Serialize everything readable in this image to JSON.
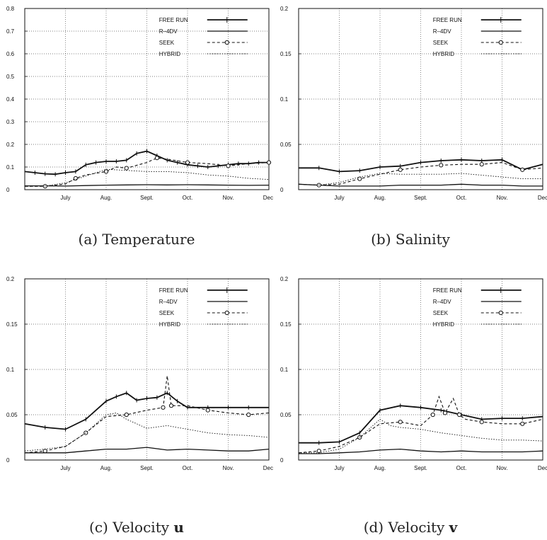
{
  "figure": {
    "captions": [
      {
        "label": "(a)",
        "text": "Temperature",
        "symbol": ""
      },
      {
        "label": "(b)",
        "text": "Salinity",
        "symbol": ""
      },
      {
        "label": "(c)",
        "text": "Velocity",
        "symbol": "u"
      },
      {
        "label": "(d)",
        "text": "Velocity",
        "symbol": "v"
      }
    ]
  },
  "legend_labels": [
    "FREE RUN",
    "R–4DV",
    "SEEK",
    "HYBRID"
  ],
  "colors": {
    "lines": "#111111",
    "grid": "#555555",
    "axis": "#111111",
    "background": "#ffffff"
  },
  "chart_data": [
    {
      "type": "line",
      "title": "Temperature",
      "xlabel": "",
      "ylabel": "",
      "x_ticks": [
        "July",
        "Aug.",
        "Sept.",
        "Oct.",
        "Nov.",
        "Dec."
      ],
      "xlim": [
        0,
        6
      ],
      "ylim": [
        0,
        0.8
      ],
      "y_ticks": [
        "0",
        "0.1",
        "0.2",
        "0.3",
        "0.4",
        "0.5",
        "0.6",
        "0.7",
        "0.8"
      ],
      "grid": "vertical dotted at months, horizontal dotted at ticks",
      "legend_position": "top-right",
      "series": [
        {
          "name": "FREE RUN",
          "style": "thick line with cross markers",
          "x": [
            0,
            0.25,
            0.5,
            0.75,
            1,
            1.25,
            1.5,
            1.75,
            2,
            2.25,
            2.5,
            2.75,
            3,
            3.25,
            3.5,
            3.75,
            4,
            4.25,
            4.5,
            4.75,
            5,
            5.25,
            5.5,
            5.75,
            6
          ],
          "y": [
            0.08,
            0.075,
            0.07,
            0.068,
            0.075,
            0.08,
            0.11,
            0.12,
            0.125,
            0.125,
            0.13,
            0.16,
            0.17,
            0.15,
            0.13,
            0.12,
            0.11,
            0.105,
            0.1,
            0.105,
            0.11,
            0.115,
            0.115,
            0.12,
            0.12
          ]
        },
        {
          "name": "R–4DV",
          "style": "solid line",
          "x": [
            0,
            0.5,
            1,
            1.5,
            2,
            2.5,
            3,
            3.5,
            4,
            4.5,
            5,
            5.5,
            6
          ],
          "y": [
            0.017,
            0.017,
            0.016,
            0.018,
            0.02,
            0.021,
            0.022,
            0.021,
            0.022,
            0.021,
            0.02,
            0.019,
            0.02
          ]
        },
        {
          "name": "SEEK",
          "style": "dashed line with circle markers",
          "x": [
            0,
            0.5,
            1,
            1.25,
            1.5,
            2,
            2.25,
            2.5,
            3,
            3.25,
            3.5,
            4,
            4.5,
            5,
            5.5,
            6
          ],
          "y": [
            0.015,
            0.015,
            0.025,
            0.05,
            0.065,
            0.08,
            0.1,
            0.095,
            0.12,
            0.14,
            0.135,
            0.12,
            0.115,
            0.105,
            0.115,
            0.12
          ]
        },
        {
          "name": "HYBRID",
          "style": "fine dotted line",
          "x": [
            0,
            0.5,
            1,
            1.5,
            2,
            2.5,
            3,
            3.5,
            4,
            4.5,
            5,
            5.5,
            6
          ],
          "y": [
            0.015,
            0.016,
            0.03,
            0.06,
            0.09,
            0.085,
            0.08,
            0.08,
            0.075,
            0.065,
            0.06,
            0.05,
            0.045
          ]
        }
      ]
    },
    {
      "type": "line",
      "title": "Salinity",
      "xlabel": "",
      "ylabel": "",
      "x_ticks": [
        "July",
        "Aug.",
        "Sept.",
        "Oct.",
        "Nov.",
        "Dec"
      ],
      "xlim": [
        0,
        6
      ],
      "ylim": [
        0,
        0.2
      ],
      "y_ticks": [
        "0",
        "0.05",
        "0.1",
        "0.15",
        "0.2"
      ],
      "grid": "vertical dotted at months, horizontal dotted at ticks",
      "legend_position": "top-right",
      "series": [
        {
          "name": "FREE RUN",
          "style": "thick line with cross markers",
          "x": [
            0,
            0.5,
            1,
            1.5,
            2,
            2.5,
            3,
            3.5,
            4,
            4.5,
            5,
            5.5,
            6
          ],
          "y": [
            0.024,
            0.024,
            0.02,
            0.021,
            0.025,
            0.026,
            0.03,
            0.032,
            0.033,
            0.032,
            0.033,
            0.022,
            0.028
          ]
        },
        {
          "name": "R–4DV",
          "style": "solid line",
          "x": [
            0,
            0.5,
            1,
            1.5,
            2,
            2.5,
            3,
            3.5,
            4,
            4.5,
            5,
            5.5,
            6
          ],
          "y": [
            0.006,
            0.005,
            0.004,
            0.004,
            0.004,
            0.005,
            0.005,
            0.005,
            0.006,
            0.005,
            0.005,
            0.004,
            0.004
          ]
        },
        {
          "name": "SEEK",
          "style": "dashed line with circle markers",
          "x": [
            0,
            0.5,
            1,
            1.5,
            2,
            2.5,
            3,
            3.5,
            4,
            4.5,
            5,
            5.5,
            6
          ],
          "y": [
            0.006,
            0.005,
            0.006,
            0.012,
            0.017,
            0.022,
            0.025,
            0.027,
            0.028,
            0.028,
            0.03,
            0.022,
            0.024
          ]
        },
        {
          "name": "HYBRID",
          "style": "fine dotted line",
          "x": [
            0,
            0.5,
            1,
            1.5,
            2,
            2.5,
            3,
            3.5,
            4,
            4.5,
            5,
            5.5,
            6
          ],
          "y": [
            0.006,
            0.005,
            0.008,
            0.014,
            0.018,
            0.017,
            0.017,
            0.017,
            0.018,
            0.016,
            0.014,
            0.012,
            0.012
          ]
        }
      ]
    },
    {
      "type": "line",
      "title": "Velocity u",
      "xlabel": "",
      "ylabel": "",
      "x_ticks": [
        "July",
        "Aug.",
        "Sept.",
        "Oct.",
        "Nov.",
        "Dec."
      ],
      "xlim": [
        0,
        6
      ],
      "ylim": [
        0,
        0.2
      ],
      "y_ticks": [
        "0",
        "0.05",
        "0.1",
        "0.15",
        "0.2"
      ],
      "grid": "vertical dotted at months, horizontal dotted at ticks",
      "legend_position": "top-right",
      "series": [
        {
          "name": "FREE RUN",
          "style": "thick line with cross markers",
          "x": [
            0,
            0.5,
            1,
            1.5,
            2,
            2.25,
            2.5,
            2.75,
            3,
            3.25,
            3.5,
            3.75,
            4,
            4.5,
            5,
            5.5,
            6
          ],
          "y": [
            0.04,
            0.036,
            0.034,
            0.045,
            0.065,
            0.07,
            0.074,
            0.066,
            0.068,
            0.069,
            0.074,
            0.065,
            0.058,
            0.058,
            0.058,
            0.058,
            0.058
          ]
        },
        {
          "name": "R–4DV",
          "style": "solid line",
          "x": [
            0,
            0.5,
            1,
            1.5,
            2,
            2.5,
            3,
            3.5,
            4,
            4.5,
            5,
            5.5,
            6
          ],
          "y": [
            0.008,
            0.008,
            0.008,
            0.01,
            0.012,
            0.012,
            0.014,
            0.011,
            0.012,
            0.011,
            0.01,
            0.01,
            0.012
          ]
        },
        {
          "name": "SEEK",
          "style": "dashed line with circle markers",
          "x": [
            0,
            0.5,
            1,
            1.5,
            2,
            2.5,
            3,
            3.4,
            3.5,
            3.6,
            4,
            4.5,
            5,
            5.5,
            6
          ],
          "y": [
            0.008,
            0.01,
            0.015,
            0.03,
            0.048,
            0.05,
            0.055,
            0.058,
            0.093,
            0.06,
            0.06,
            0.055,
            0.052,
            0.05,
            0.052
          ]
        },
        {
          "name": "HYBRID",
          "style": "fine dotted line",
          "x": [
            0,
            0.5,
            1,
            1.5,
            2,
            2.25,
            2.5,
            3,
            3.5,
            4,
            4.5,
            5,
            5.5,
            6
          ],
          "y": [
            0.01,
            0.012,
            0.015,
            0.03,
            0.05,
            0.052,
            0.045,
            0.035,
            0.038,
            0.034,
            0.03,
            0.028,
            0.027,
            0.025
          ]
        }
      ]
    },
    {
      "type": "line",
      "title": "Velocity v",
      "xlabel": "",
      "ylabel": "",
      "x_ticks": [
        "July",
        "Aug.",
        "Sept.",
        "Oct.",
        "Nov.",
        "Dec"
      ],
      "xlim": [
        0,
        6
      ],
      "ylim": [
        0,
        0.2
      ],
      "y_ticks": [
        "0",
        "0.05",
        "0.1",
        "0.15",
        "0.2"
      ],
      "grid": "vertical dotted at months, horizontal dotted at ticks",
      "legend_position": "top-right",
      "series": [
        {
          "name": "FREE RUN",
          "style": "thick line with cross markers",
          "x": [
            0,
            0.5,
            1,
            1.5,
            2,
            2.5,
            3,
            3.5,
            4,
            4.5,
            5,
            5.5,
            6
          ],
          "y": [
            0.019,
            0.019,
            0.02,
            0.03,
            0.055,
            0.06,
            0.058,
            0.055,
            0.05,
            0.045,
            0.046,
            0.046,
            0.048
          ]
        },
        {
          "name": "R–4DV",
          "style": "solid line",
          "x": [
            0,
            0.5,
            1,
            1.5,
            2,
            2.5,
            3,
            3.5,
            4,
            4.5,
            5,
            5.5,
            6
          ],
          "y": [
            0.007,
            0.007,
            0.008,
            0.009,
            0.011,
            0.012,
            0.01,
            0.009,
            0.01,
            0.009,
            0.009,
            0.009,
            0.01
          ]
        },
        {
          "name": "SEEK",
          "style": "dashed line with circle markers",
          "x": [
            0,
            0.5,
            1,
            1.5,
            2,
            2.5,
            3,
            3.3,
            3.45,
            3.6,
            3.8,
            3.95,
            4.1,
            4.5,
            5,
            5.5,
            6
          ],
          "y": [
            0.008,
            0.01,
            0.015,
            0.025,
            0.04,
            0.042,
            0.038,
            0.05,
            0.07,
            0.052,
            0.068,
            0.05,
            0.045,
            0.042,
            0.04,
            0.04,
            0.045
          ]
        },
        {
          "name": "HYBRID",
          "style": "fine dotted line",
          "x": [
            0,
            0.5,
            1,
            1.5,
            2,
            2.25,
            2.5,
            3,
            3.5,
            4,
            4.5,
            5,
            5.5,
            6
          ],
          "y": [
            0.008,
            0.008,
            0.012,
            0.025,
            0.045,
            0.038,
            0.036,
            0.034,
            0.03,
            0.027,
            0.024,
            0.022,
            0.022,
            0.021
          ]
        }
      ]
    }
  ]
}
